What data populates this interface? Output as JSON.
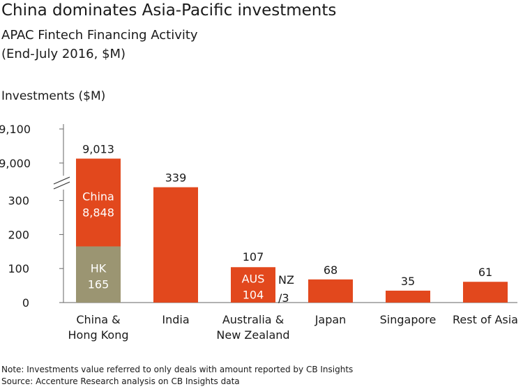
{
  "title": "China dominates Asia-Pacific investments",
  "subtitle": "APAC Fintech Financing Activity",
  "subtitle2": "(End-July 2016, $M)",
  "y_axis_title": "Investments ($M)",
  "note": "Note: Investments value referred to only deals with amount reported by CB Insights",
  "source": "Source: Accenture Research analysis on CB Insights data",
  "colors": {
    "bar": "#e2481d",
    "hk": "#9b9572",
    "text": "#1a1a1a",
    "axis": "#666666"
  },
  "chart_data": {
    "type": "bar",
    "stacked": true,
    "broken_axis": {
      "lower_range": [
        0,
        340
      ],
      "upper_range": [
        8930,
        9100
      ]
    },
    "y_ticks_lower": [
      "0",
      "100",
      "200",
      "300"
    ],
    "y_ticks_upper": [
      "9,000",
      "9,100"
    ],
    "categories": [
      {
        "label": [
          "China &",
          "Hong Kong"
        ],
        "total": 9013,
        "total_label": "9,013",
        "segments": [
          {
            "name": "HK",
            "value": 165,
            "value_label": "165",
            "color_key": "hk"
          },
          {
            "name": "China",
            "value": 8848,
            "value_label": "8,848",
            "color_key": "bar"
          }
        ]
      },
      {
        "label": [
          "India"
        ],
        "total": 339,
        "total_label": "339",
        "segments": [
          {
            "name": "",
            "value": 339,
            "color_key": "bar"
          }
        ]
      },
      {
        "label": [
          "Australia &",
          "New Zealand"
        ],
        "total": 107,
        "total_label": "107",
        "segments": [
          {
            "name": "AUS",
            "value": 104,
            "value_label": "104",
            "color_key": "bar"
          },
          {
            "name": "NZ",
            "value": 3,
            "value_label": "/3",
            "color_key": "bar",
            "outside": true
          }
        ]
      },
      {
        "label": [
          "Japan"
        ],
        "total": 68,
        "total_label": "68",
        "segments": [
          {
            "name": "",
            "value": 68,
            "color_key": "bar"
          }
        ]
      },
      {
        "label": [
          "Singapore"
        ],
        "total": 35,
        "total_label": "35",
        "segments": [
          {
            "name": "",
            "value": 35,
            "color_key": "bar"
          }
        ]
      },
      {
        "label": [
          "Rest of Asia"
        ],
        "total": 61,
        "total_label": "61",
        "segments": [
          {
            "name": "",
            "value": 61,
            "color_key": "bar"
          }
        ]
      }
    ]
  }
}
